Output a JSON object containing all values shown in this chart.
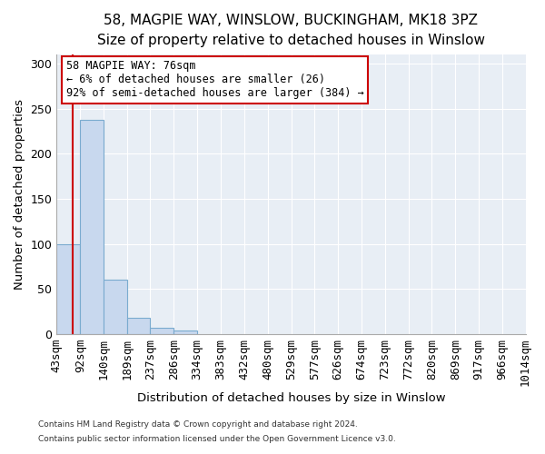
{
  "title": "58, MAGPIE WAY, WINSLOW, BUCKINGHAM, MK18 3PZ",
  "subtitle": "Size of property relative to detached houses in Winslow",
  "xlabel": "Distribution of detached houses by size in Winslow",
  "ylabel": "Number of detached properties",
  "footer1": "Contains HM Land Registry data © Crown copyright and database right 2024.",
  "footer2": "Contains public sector information licensed under the Open Government Licence v3.0.",
  "bin_edges": [
    43,
    92,
    140,
    189,
    237,
    286,
    334,
    383,
    432,
    480,
    529,
    577,
    626,
    674,
    723,
    772,
    820,
    869,
    917,
    966,
    1014
  ],
  "bin_labels": [
    "43sqm",
    "92sqm",
    "140sqm",
    "189sqm",
    "237sqm",
    "286sqm",
    "334sqm",
    "383sqm",
    "432sqm",
    "480sqm",
    "529sqm",
    "577sqm",
    "626sqm",
    "674sqm",
    "723sqm",
    "772sqm",
    "820sqm",
    "869sqm",
    "917sqm",
    "966sqm",
    "1014sqm"
  ],
  "bar_heights": [
    100,
    238,
    60,
    18,
    7,
    4,
    0,
    0,
    0,
    0,
    0,
    0,
    0,
    0,
    0,
    0,
    0,
    0,
    0,
    0
  ],
  "bar_color": "#c8d8ee",
  "bar_edgecolor": "#7aabcf",
  "property_line_x": 76,
  "property_line_color": "#cc0000",
  "annotation_text": "58 MAGPIE WAY: 76sqm\n← 6% of detached houses are smaller (26)\n92% of semi-detached houses are larger (384) →",
  "annotation_box_color": "#ffffff",
  "annotation_box_edgecolor": "#cc0000",
  "ylim": [
    0,
    310
  ],
  "xlim_left": 43,
  "xlim_right": 1014,
  "background_color": "#ffffff",
  "plot_background": "#e8eef5",
  "grid_color": "#ffffff",
  "title_fontsize": 11,
  "subtitle_fontsize": 10,
  "yticks": [
    0,
    50,
    100,
    150,
    200,
    250,
    300
  ]
}
